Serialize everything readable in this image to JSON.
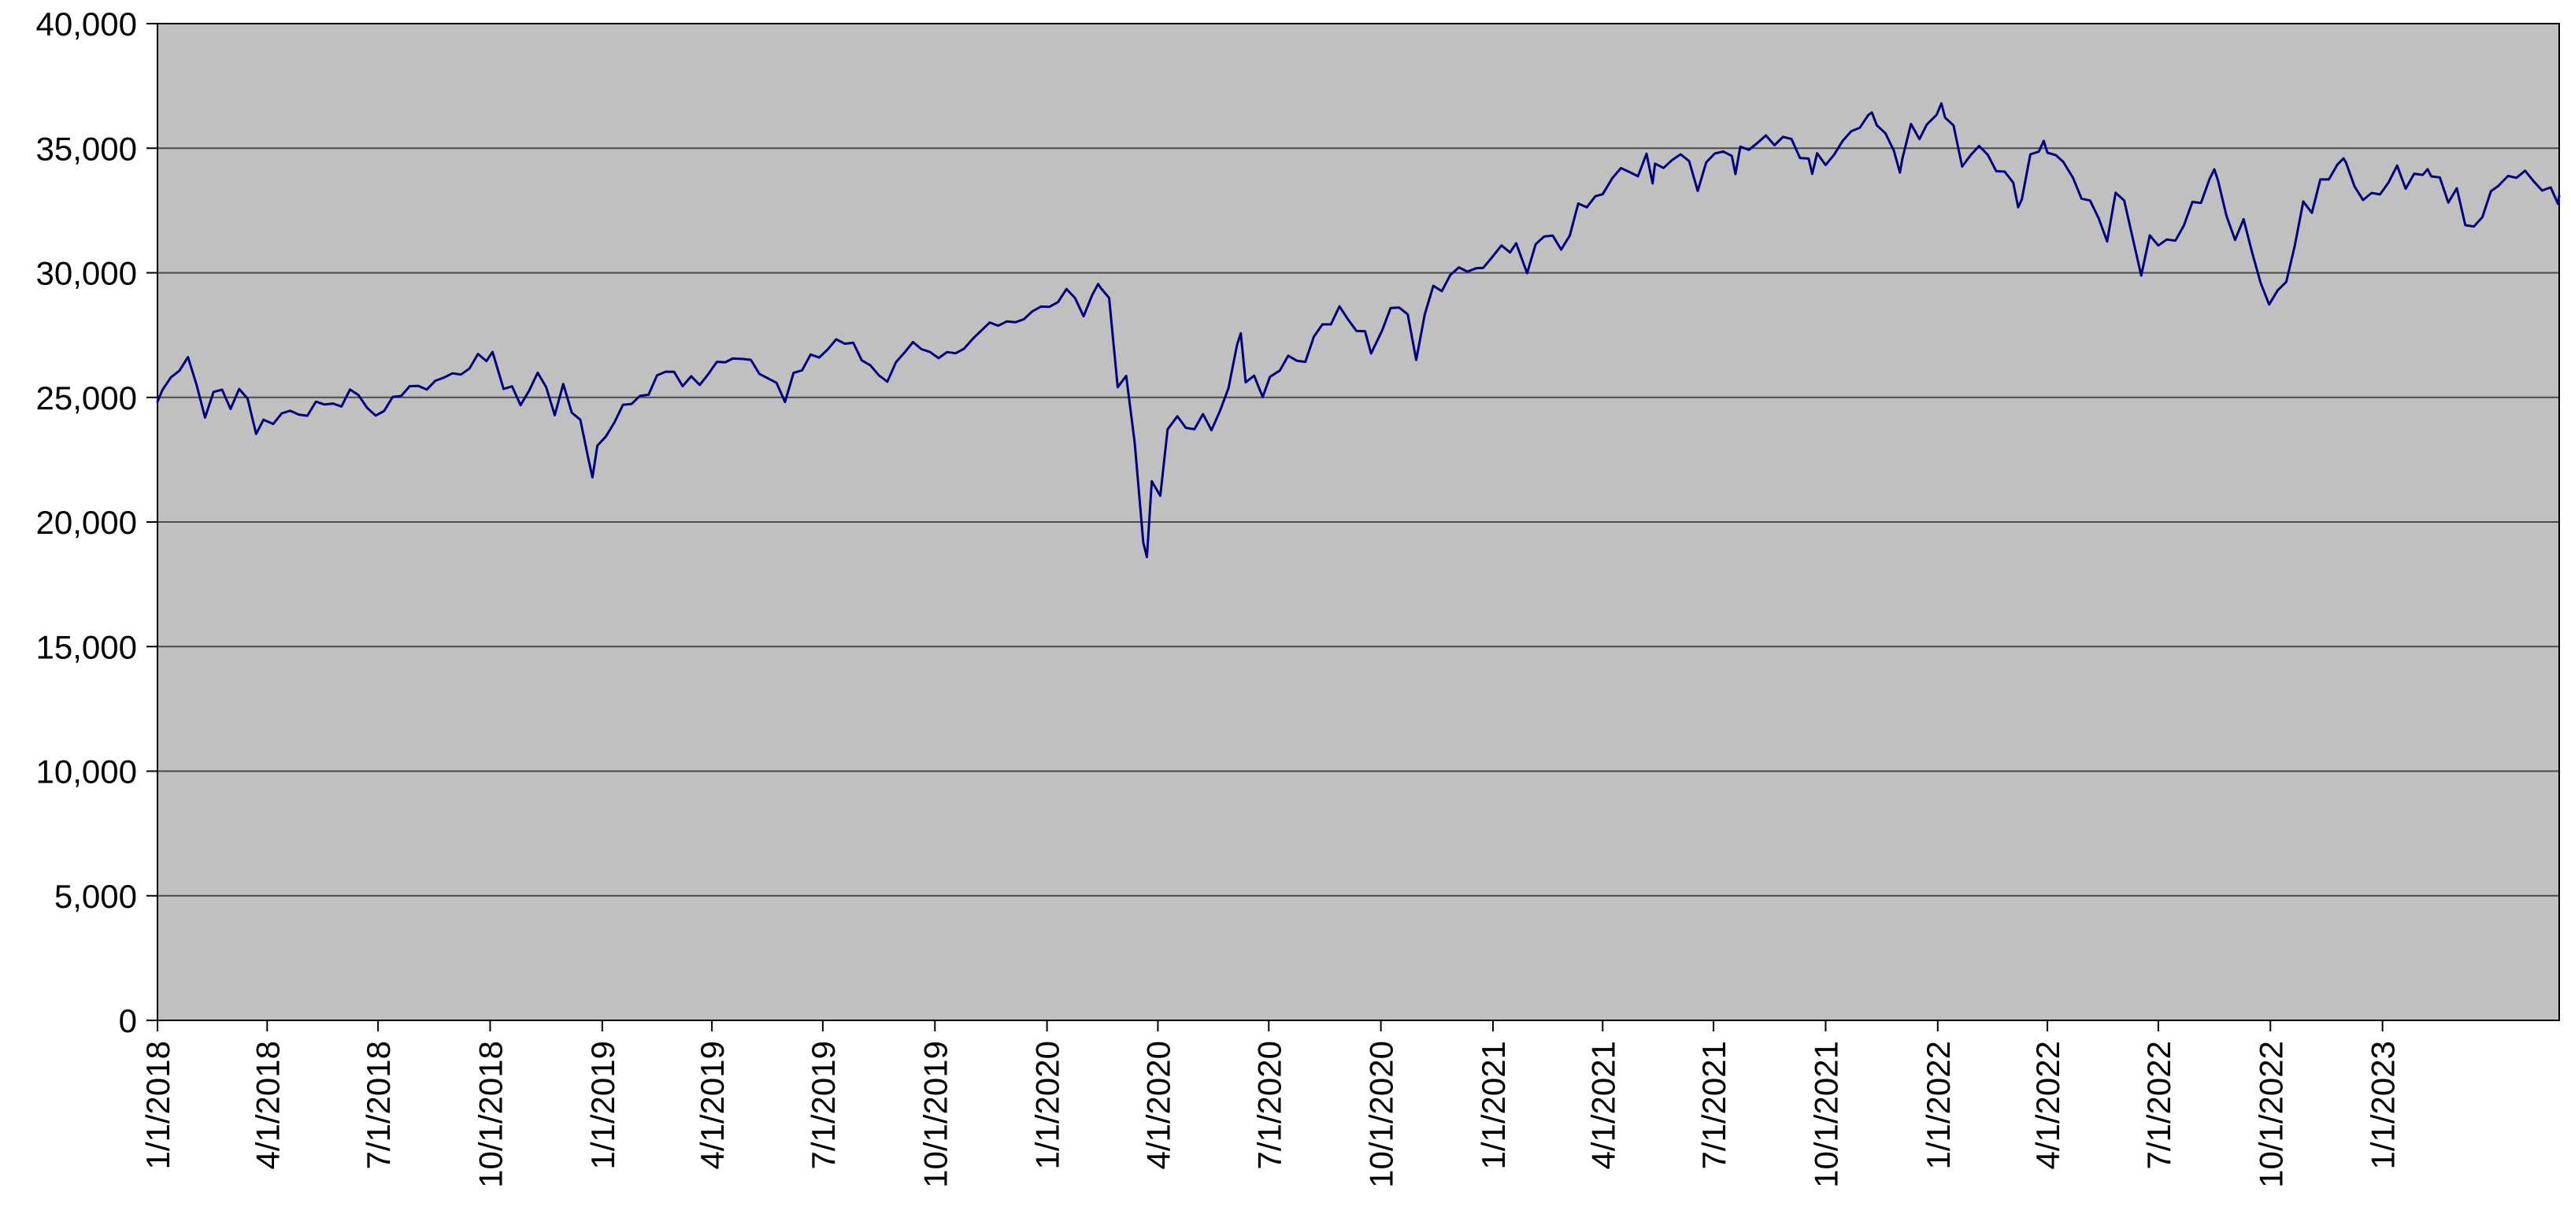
{
  "colors": {
    "page_bg": "#ffffff",
    "plot_bg": "#c0c0c0",
    "gridline": "#4a4a4a",
    "axis": "#000000",
    "text": "#000000",
    "line": "#000080"
  },
  "chart_data": {
    "type": "line",
    "title": "",
    "xlabel": "",
    "ylabel": "",
    "legend": "none",
    "grid": "horizontal",
    "x_type": "date",
    "x_range": [
      "2018-01-01",
      "2023-05-26"
    ],
    "ylim": [
      0,
      40000
    ],
    "yticks": [
      {
        "value": 0,
        "label": "0"
      },
      {
        "value": 5000,
        "label": "5,000"
      },
      {
        "value": 10000,
        "label": "10,000"
      },
      {
        "value": 15000,
        "label": "15,000"
      },
      {
        "value": 20000,
        "label": "20,000"
      },
      {
        "value": 25000,
        "label": "25,000"
      },
      {
        "value": 30000,
        "label": "30,000"
      },
      {
        "value": 35000,
        "label": "35,000"
      },
      {
        "value": 40000,
        "label": "40,000"
      }
    ],
    "xticks": [
      {
        "date": "2018-01-01",
        "label": "1/1/2018"
      },
      {
        "date": "2018-04-01",
        "label": "4/1/2018"
      },
      {
        "date": "2018-07-01",
        "label": "7/1/2018"
      },
      {
        "date": "2018-10-01",
        "label": "10/1/2018"
      },
      {
        "date": "2019-01-01",
        "label": "1/1/2019"
      },
      {
        "date": "2019-04-01",
        "label": "4/1/2019"
      },
      {
        "date": "2019-07-01",
        "label": "7/1/2019"
      },
      {
        "date": "2019-10-01",
        "label": "10/1/2019"
      },
      {
        "date": "2020-01-01",
        "label": "1/1/2020"
      },
      {
        "date": "2020-04-01",
        "label": "4/1/2020"
      },
      {
        "date": "2020-07-01",
        "label": "7/1/2020"
      },
      {
        "date": "2020-10-01",
        "label": "10/1/2020"
      },
      {
        "date": "2021-01-01",
        "label": "1/1/2021"
      },
      {
        "date": "2021-04-01",
        "label": "4/1/2021"
      },
      {
        "date": "2021-07-01",
        "label": "7/1/2021"
      },
      {
        "date": "2021-10-01",
        "label": "10/1/2021"
      },
      {
        "date": "2022-01-01",
        "label": "1/1/2022"
      },
      {
        "date": "2022-04-01",
        "label": "4/1/2022"
      },
      {
        "date": "2022-07-01",
        "label": "7/1/2022"
      },
      {
        "date": "2022-10-01",
        "label": "10/1/2022"
      },
      {
        "date": "2023-01-01",
        "label": "1/1/2023"
      }
    ],
    "points": [
      [
        "2018-01-01",
        24824
      ],
      [
        "2018-01-05",
        25296
      ],
      [
        "2018-01-12",
        25803
      ],
      [
        "2018-01-19",
        26072
      ],
      [
        "2018-01-26",
        26617
      ],
      [
        "2018-02-02",
        25521
      ],
      [
        "2018-02-09",
        24191
      ],
      [
        "2018-02-16",
        25219
      ],
      [
        "2018-02-23",
        25310
      ],
      [
        "2018-03-02",
        24538
      ],
      [
        "2018-03-09",
        25336
      ],
      [
        "2018-03-16",
        24947
      ],
      [
        "2018-03-23",
        23533
      ],
      [
        "2018-03-29",
        24103
      ],
      [
        "2018-04-06",
        23933
      ],
      [
        "2018-04-13",
        24360
      ],
      [
        "2018-04-20",
        24463
      ],
      [
        "2018-04-27",
        24311
      ],
      [
        "2018-05-04",
        24263
      ],
      [
        "2018-05-11",
        24831
      ],
      [
        "2018-05-18",
        24715
      ],
      [
        "2018-05-25",
        24753
      ],
      [
        "2018-06-01",
        24635
      ],
      [
        "2018-06-08",
        25317
      ],
      [
        "2018-06-15",
        25090
      ],
      [
        "2018-06-22",
        24581
      ],
      [
        "2018-06-29",
        24271
      ],
      [
        "2018-07-06",
        24456
      ],
      [
        "2018-07-13",
        25019
      ],
      [
        "2018-07-20",
        25058
      ],
      [
        "2018-07-27",
        25451
      ],
      [
        "2018-08-03",
        25463
      ],
      [
        "2018-08-10",
        25313
      ],
      [
        "2018-08-17",
        25669
      ],
      [
        "2018-08-24",
        25790
      ],
      [
        "2018-08-31",
        25965
      ],
      [
        "2018-09-07",
        25917
      ],
      [
        "2018-09-14",
        26155
      ],
      [
        "2018-09-21",
        26744
      ],
      [
        "2018-09-28",
        26458
      ],
      [
        "2018-10-03",
        26828
      ],
      [
        "2018-10-12",
        25340
      ],
      [
        "2018-10-19",
        25444
      ],
      [
        "2018-10-26",
        24688
      ],
      [
        "2018-11-02",
        25271
      ],
      [
        "2018-11-09",
        25989
      ],
      [
        "2018-11-16",
        25413
      ],
      [
        "2018-11-23",
        24286
      ],
      [
        "2018-11-30",
        25538
      ],
      [
        "2018-12-07",
        24389
      ],
      [
        "2018-12-14",
        24101
      ],
      [
        "2018-12-21",
        22445
      ],
      [
        "2018-12-24",
        21792
      ],
      [
        "2018-12-28",
        23062
      ],
      [
        "2019-01-04",
        23433
      ],
      [
        "2019-01-11",
        23996
      ],
      [
        "2019-01-18",
        24706
      ],
      [
        "2019-01-25",
        24737
      ],
      [
        "2019-02-01",
        25064
      ],
      [
        "2019-02-08",
        25106
      ],
      [
        "2019-02-15",
        25883
      ],
      [
        "2019-02-22",
        26032
      ],
      [
        "2019-03-01",
        26026
      ],
      [
        "2019-03-08",
        25450
      ],
      [
        "2019-03-15",
        25849
      ],
      [
        "2019-03-22",
        25502
      ],
      [
        "2019-03-29",
        25929
      ],
      [
        "2019-04-05",
        26425
      ],
      [
        "2019-04-12",
        26412
      ],
      [
        "2019-04-18",
        26560
      ],
      [
        "2019-04-26",
        26543
      ],
      [
        "2019-05-03",
        26505
      ],
      [
        "2019-05-10",
        25942
      ],
      [
        "2019-05-17",
        25764
      ],
      [
        "2019-05-24",
        25586
      ],
      [
        "2019-05-31",
        24815
      ],
      [
        "2019-06-07",
        25984
      ],
      [
        "2019-06-14",
        26090
      ],
      [
        "2019-06-21",
        26720
      ],
      [
        "2019-06-28",
        26600
      ],
      [
        "2019-07-05",
        26922
      ],
      [
        "2019-07-12",
        27332
      ],
      [
        "2019-07-19",
        27154
      ],
      [
        "2019-07-26",
        27192
      ],
      [
        "2019-08-02",
        26485
      ],
      [
        "2019-08-09",
        26287
      ],
      [
        "2019-08-16",
        25886
      ],
      [
        "2019-08-23",
        25629
      ],
      [
        "2019-08-30",
        26403
      ],
      [
        "2019-09-06",
        26797
      ],
      [
        "2019-09-13",
        27219
      ],
      [
        "2019-09-20",
        26935
      ],
      [
        "2019-09-27",
        26820
      ],
      [
        "2019-10-04",
        26574
      ],
      [
        "2019-10-11",
        26817
      ],
      [
        "2019-10-18",
        26770
      ],
      [
        "2019-10-25",
        26958
      ],
      [
        "2019-11-01",
        27347
      ],
      [
        "2019-11-08",
        27681
      ],
      [
        "2019-11-15",
        28005
      ],
      [
        "2019-11-22",
        27876
      ],
      [
        "2019-11-29",
        28051
      ],
      [
        "2019-12-06",
        28015
      ],
      [
        "2019-12-13",
        28135
      ],
      [
        "2019-12-20",
        28455
      ],
      [
        "2019-12-27",
        28645
      ],
      [
        "2020-01-03",
        28635
      ],
      [
        "2020-01-10",
        28824
      ],
      [
        "2020-01-17",
        29348
      ],
      [
        "2020-01-24",
        28990
      ],
      [
        "2020-01-31",
        28256
      ],
      [
        "2020-02-07",
        29103
      ],
      [
        "2020-02-12",
        29551
      ],
      [
        "2020-02-14",
        29398
      ],
      [
        "2020-02-21",
        28992
      ],
      [
        "2020-02-28",
        25409
      ],
      [
        "2020-03-06",
        25865
      ],
      [
        "2020-03-13",
        23185
      ],
      [
        "2020-03-20",
        19174
      ],
      [
        "2020-03-23",
        18592
      ],
      [
        "2020-03-27",
        21637
      ],
      [
        "2020-04-03",
        21053
      ],
      [
        "2020-04-09",
        23719
      ],
      [
        "2020-04-17",
        24242
      ],
      [
        "2020-04-24",
        23775
      ],
      [
        "2020-05-01",
        23724
      ],
      [
        "2020-05-08",
        24331
      ],
      [
        "2020-05-15",
        23685
      ],
      [
        "2020-05-22",
        24465
      ],
      [
        "2020-05-29",
        25383
      ],
      [
        "2020-06-05",
        27111
      ],
      [
        "2020-06-08",
        27572
      ],
      [
        "2020-06-12",
        25605
      ],
      [
        "2020-06-19",
        25871
      ],
      [
        "2020-06-26",
        25016
      ],
      [
        "2020-07-02",
        25827
      ],
      [
        "2020-07-10",
        26075
      ],
      [
        "2020-07-17",
        26672
      ],
      [
        "2020-07-24",
        26470
      ],
      [
        "2020-07-31",
        26428
      ],
      [
        "2020-08-07",
        27433
      ],
      [
        "2020-08-14",
        27931
      ],
      [
        "2020-08-21",
        27930
      ],
      [
        "2020-08-28",
        28654
      ],
      [
        "2020-09-04",
        28133
      ],
      [
        "2020-09-11",
        27666
      ],
      [
        "2020-09-18",
        27657
      ],
      [
        "2020-09-23",
        26763
      ],
      [
        "2020-10-02",
        27683
      ],
      [
        "2020-10-09",
        28587
      ],
      [
        "2020-10-16",
        28606
      ],
      [
        "2020-10-23",
        28336
      ],
      [
        "2020-10-30",
        26502
      ],
      [
        "2020-11-06",
        28323
      ],
      [
        "2020-11-13",
        29480
      ],
      [
        "2020-11-20",
        29263
      ],
      [
        "2020-11-27",
        29910
      ],
      [
        "2020-12-04",
        30218
      ],
      [
        "2020-12-11",
        30046
      ],
      [
        "2020-12-18",
        30179
      ],
      [
        "2020-12-24",
        30200
      ],
      [
        "2020-12-31",
        30606
      ],
      [
        "2021-01-08",
        31098
      ],
      [
        "2021-01-15",
        30814
      ],
      [
        "2021-01-20",
        31188
      ],
      [
        "2021-01-29",
        29983
      ],
      [
        "2021-02-05",
        31148
      ],
      [
        "2021-02-12",
        31458
      ],
      [
        "2021-02-19",
        31494
      ],
      [
        "2021-02-26",
        30932
      ],
      [
        "2021-03-05",
        31496
      ],
      [
        "2021-03-12",
        32779
      ],
      [
        "2021-03-19",
        32628
      ],
      [
        "2021-03-26",
        33073
      ],
      [
        "2021-04-01",
        33153
      ],
      [
        "2021-04-09",
        33801
      ],
      [
        "2021-04-16",
        34201
      ],
      [
        "2021-04-23",
        34043
      ],
      [
        "2021-04-30",
        33875
      ],
      [
        "2021-05-07",
        34778
      ],
      [
        "2021-05-12",
        33588
      ],
      [
        "2021-05-14",
        34382
      ],
      [
        "2021-05-21",
        34208
      ],
      [
        "2021-05-28",
        34529
      ],
      [
        "2021-06-04",
        34756
      ],
      [
        "2021-06-11",
        34480
      ],
      [
        "2021-06-18",
        33290
      ],
      [
        "2021-06-25",
        34434
      ],
      [
        "2021-07-02",
        34786
      ],
      [
        "2021-07-09",
        34870
      ],
      [
        "2021-07-16",
        34688
      ],
      [
        "2021-07-19",
        33962
      ],
      [
        "2021-07-23",
        35062
      ],
      [
        "2021-07-30",
        34935
      ],
      [
        "2021-08-06",
        35209
      ],
      [
        "2021-08-13",
        35515
      ],
      [
        "2021-08-20",
        35120
      ],
      [
        "2021-08-27",
        35456
      ],
      [
        "2021-09-03",
        35369
      ],
      [
        "2021-09-10",
        34608
      ],
      [
        "2021-09-17",
        34585
      ],
      [
        "2021-09-20",
        33970
      ],
      [
        "2021-09-24",
        34798
      ],
      [
        "2021-10-01",
        34326
      ],
      [
        "2021-10-08",
        34746
      ],
      [
        "2021-10-15",
        35295
      ],
      [
        "2021-10-22",
        35677
      ],
      [
        "2021-10-29",
        35820
      ],
      [
        "2021-11-05",
        36328
      ],
      [
        "2021-11-08",
        36432
      ],
      [
        "2021-11-12",
        35921
      ],
      [
        "2021-11-19",
        35602
      ],
      [
        "2021-11-26",
        34899
      ],
      [
        "2021-12-01",
        34022
      ],
      [
        "2021-12-03",
        34580
      ],
      [
        "2021-12-10",
        35971
      ],
      [
        "2021-12-17",
        35365
      ],
      [
        "2021-12-23",
        35950
      ],
      [
        "2021-12-31",
        36338
      ],
      [
        "2022-01-04",
        36800
      ],
      [
        "2022-01-07",
        36232
      ],
      [
        "2022-01-14",
        35912
      ],
      [
        "2022-01-21",
        34265
      ],
      [
        "2022-01-28",
        34725
      ],
      [
        "2022-02-04",
        35090
      ],
      [
        "2022-02-11",
        34738
      ],
      [
        "2022-02-18",
        34079
      ],
      [
        "2022-02-25",
        34059
      ],
      [
        "2022-03-04",
        33615
      ],
      [
        "2022-03-08",
        32632
      ],
      [
        "2022-03-11",
        32944
      ],
      [
        "2022-03-18",
        34755
      ],
      [
        "2022-03-25",
        34861
      ],
      [
        "2022-03-29",
        35294
      ],
      [
        "2022-04-01",
        34818
      ],
      [
        "2022-04-08",
        34721
      ],
      [
        "2022-04-14",
        34451
      ],
      [
        "2022-04-22",
        33811
      ],
      [
        "2022-04-29",
        32977
      ],
      [
        "2022-05-06",
        32899
      ],
      [
        "2022-05-13",
        32197
      ],
      [
        "2022-05-20",
        31262
      ],
      [
        "2022-05-27",
        33213
      ],
      [
        "2022-06-03",
        32900
      ],
      [
        "2022-06-10",
        31393
      ],
      [
        "2022-06-17",
        29889
      ],
      [
        "2022-06-24",
        31500
      ],
      [
        "2022-07-01",
        31097
      ],
      [
        "2022-07-08",
        31338
      ],
      [
        "2022-07-15",
        31288
      ],
      [
        "2022-07-22",
        31899
      ],
      [
        "2022-07-29",
        32845
      ],
      [
        "2022-08-05",
        32803
      ],
      [
        "2022-08-12",
        33761
      ],
      [
        "2022-08-16",
        34152
      ],
      [
        "2022-08-19",
        33707
      ],
      [
        "2022-08-26",
        32283
      ],
      [
        "2022-09-02",
        31318
      ],
      [
        "2022-09-09",
        32151
      ],
      [
        "2022-09-16",
        30822
      ],
      [
        "2022-09-23",
        29590
      ],
      [
        "2022-09-30",
        28726
      ],
      [
        "2022-10-07",
        29297
      ],
      [
        "2022-10-14",
        29635
      ],
      [
        "2022-10-21",
        31083
      ],
      [
        "2022-10-28",
        32862
      ],
      [
        "2022-11-04",
        32403
      ],
      [
        "2022-11-11",
        33748
      ],
      [
        "2022-11-18",
        33746
      ],
      [
        "2022-11-25",
        34347
      ],
      [
        "2022-11-30",
        34590
      ],
      [
        "2022-12-02",
        34430
      ],
      [
        "2022-12-09",
        33476
      ],
      [
        "2022-12-16",
        32920
      ],
      [
        "2022-12-23",
        33204
      ],
      [
        "2022-12-30",
        33147
      ],
      [
        "2023-01-06",
        33631
      ],
      [
        "2023-01-13",
        34302
      ],
      [
        "2023-01-20",
        33375
      ],
      [
        "2023-01-27",
        33978
      ],
      [
        "2023-02-03",
        33926
      ],
      [
        "2023-02-07",
        34157
      ],
      [
        "2023-02-10",
        33869
      ],
      [
        "2023-02-17",
        33827
      ],
      [
        "2023-02-24",
        32817
      ],
      [
        "2023-03-03",
        33391
      ],
      [
        "2023-03-10",
        31910
      ],
      [
        "2023-03-15",
        31875
      ],
      [
        "2023-03-17",
        31862
      ],
      [
        "2023-03-24",
        32237
      ],
      [
        "2023-03-31",
        33274
      ],
      [
        "2023-04-06",
        33485
      ],
      [
        "2023-04-14",
        33886
      ],
      [
        "2023-04-21",
        33809
      ],
      [
        "2023-04-28",
        34098
      ],
      [
        "2023-05-05",
        33674
      ],
      [
        "2023-05-12",
        33301
      ],
      [
        "2023-05-19",
        33427
      ],
      [
        "2023-05-25",
        32764
      ],
      [
        "2023-05-26",
        33093
      ]
    ]
  }
}
